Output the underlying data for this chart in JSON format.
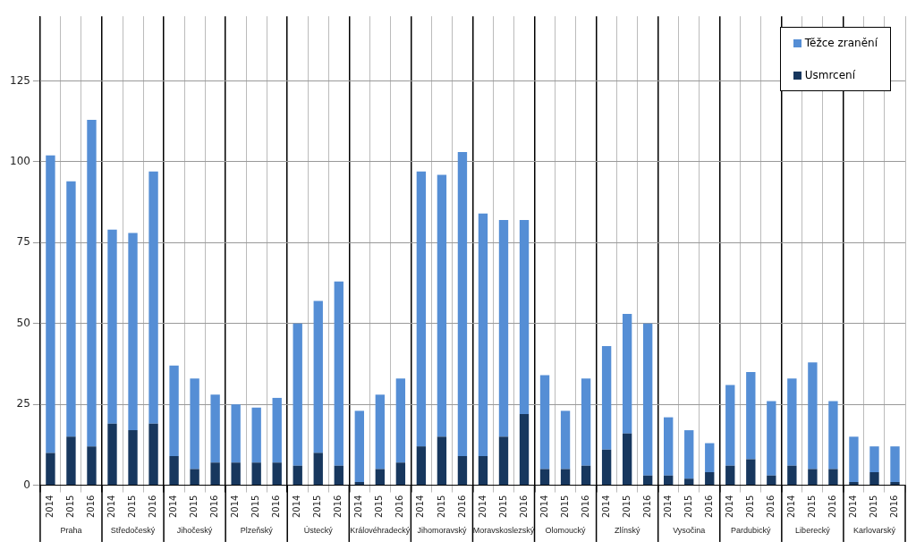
{
  "chart_data": {
    "type": "bar",
    "stacked": true,
    "categories": [
      "2014",
      "2015",
      "2016",
      "2014",
      "2015",
      "2016",
      "2014",
      "2015",
      "2016",
      "2014",
      "2015",
      "2016",
      "2014",
      "2015",
      "2016",
      "2014",
      "2015",
      "2016",
      "2014",
      "2015",
      "2016",
      "2014",
      "2015",
      "2016",
      "2014",
      "2015",
      "2016",
      "2014",
      "2015",
      "2016",
      "2014",
      "2015",
      "2016",
      "2014",
      "2015",
      "2016",
      "2014",
      "2015",
      "2016",
      "2014",
      "2015",
      "2016"
    ],
    "annotations": [
      "Praha",
      "Středočeský",
      "Jihočeský",
      "Plzeňský",
      "Ústecký",
      "Královéhradecký",
      "Jihomoravský",
      "Moravskoslezský",
      "Olomoucký",
      "Zlínský",
      "Vysočina",
      "Pardubický",
      "Liberecký",
      "Karlovarský"
    ],
    "series": [
      {
        "name": "Usmrcení",
        "color": "#17375e",
        "values": [
          10,
          15,
          12,
          19,
          17,
          19,
          9,
          5,
          7,
          7,
          7,
          7,
          6,
          10,
          6,
          1,
          5,
          7,
          12,
          15,
          9,
          9,
          15,
          22,
          5,
          5,
          6,
          11,
          16,
          3,
          3,
          2,
          4,
          6,
          8,
          3,
          6,
          5,
          5,
          1,
          4,
          1
        ]
      },
      {
        "name": "Těžce zranění",
        "color": "#558ed5",
        "values": [
          92,
          79,
          101,
          60,
          61,
          78,
          28,
          28,
          21,
          18,
          17,
          20,
          44,
          47,
          57,
          22,
          23,
          26,
          85,
          81,
          94,
          75,
          67,
          60,
          29,
          18,
          27,
          32,
          37,
          47,
          18,
          15,
          9,
          25,
          27,
          23,
          27,
          33,
          21,
          14,
          8,
          11
        ]
      }
    ],
    "ylim": [
      0,
      145
    ],
    "yticks": [
      0,
      25,
      50,
      75,
      100,
      125
    ],
    "grid": true,
    "legend": "top right"
  }
}
